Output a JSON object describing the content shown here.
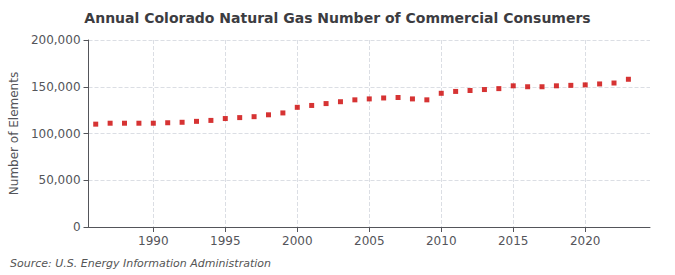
{
  "chart_data": {
    "type": "scatter",
    "title": "Annual Colorado Natural Gas Number of Commercial Consumers",
    "ylabel": "Number of Elements",
    "annotations": [
      "Source: U.S. Energy Information Administration"
    ],
    "x": [
      1986,
      1987,
      1988,
      1989,
      1990,
      1991,
      1992,
      1993,
      1994,
      1995,
      1996,
      1997,
      1998,
      1999,
      2000,
      2001,
      2002,
      2003,
      2004,
      2005,
      2006,
      2007,
      2008,
      2009,
      2010,
      2011,
      2012,
      2013,
      2014,
      2015,
      2016,
      2017,
      2018,
      2019,
      2020,
      2021,
      2022,
      2023
    ],
    "values": [
      110000,
      111000,
      111000,
      111000,
      111000,
      111500,
      112000,
      113000,
      114000,
      116000,
      117000,
      118000,
      120000,
      122000,
      128000,
      130000,
      132000,
      134000,
      136000,
      137000,
      138000,
      138500,
      137000,
      136000,
      143000,
      145000,
      146000,
      147000,
      148000,
      151000,
      150000,
      150000,
      151000,
      151500,
      152000,
      153000,
      154000,
      158000
    ],
    "color": "#cc0000",
    "marker": "square",
    "xlim": [
      1985.5,
      2024.5
    ],
    "xticks": [
      1990,
      1995,
      2000,
      2005,
      2010,
      2015,
      2020
    ],
    "ylim": [
      0,
      200000
    ],
    "yticks": [
      0,
      {
        "value": 50000,
        "label": "50,000"
      },
      {
        "value": 100000,
        "label": "100,000"
      },
      {
        "value": 150000,
        "label": "150,000"
      },
      {
        "value": 200000,
        "label": "200,000"
      }
    ],
    "grid": true
  }
}
